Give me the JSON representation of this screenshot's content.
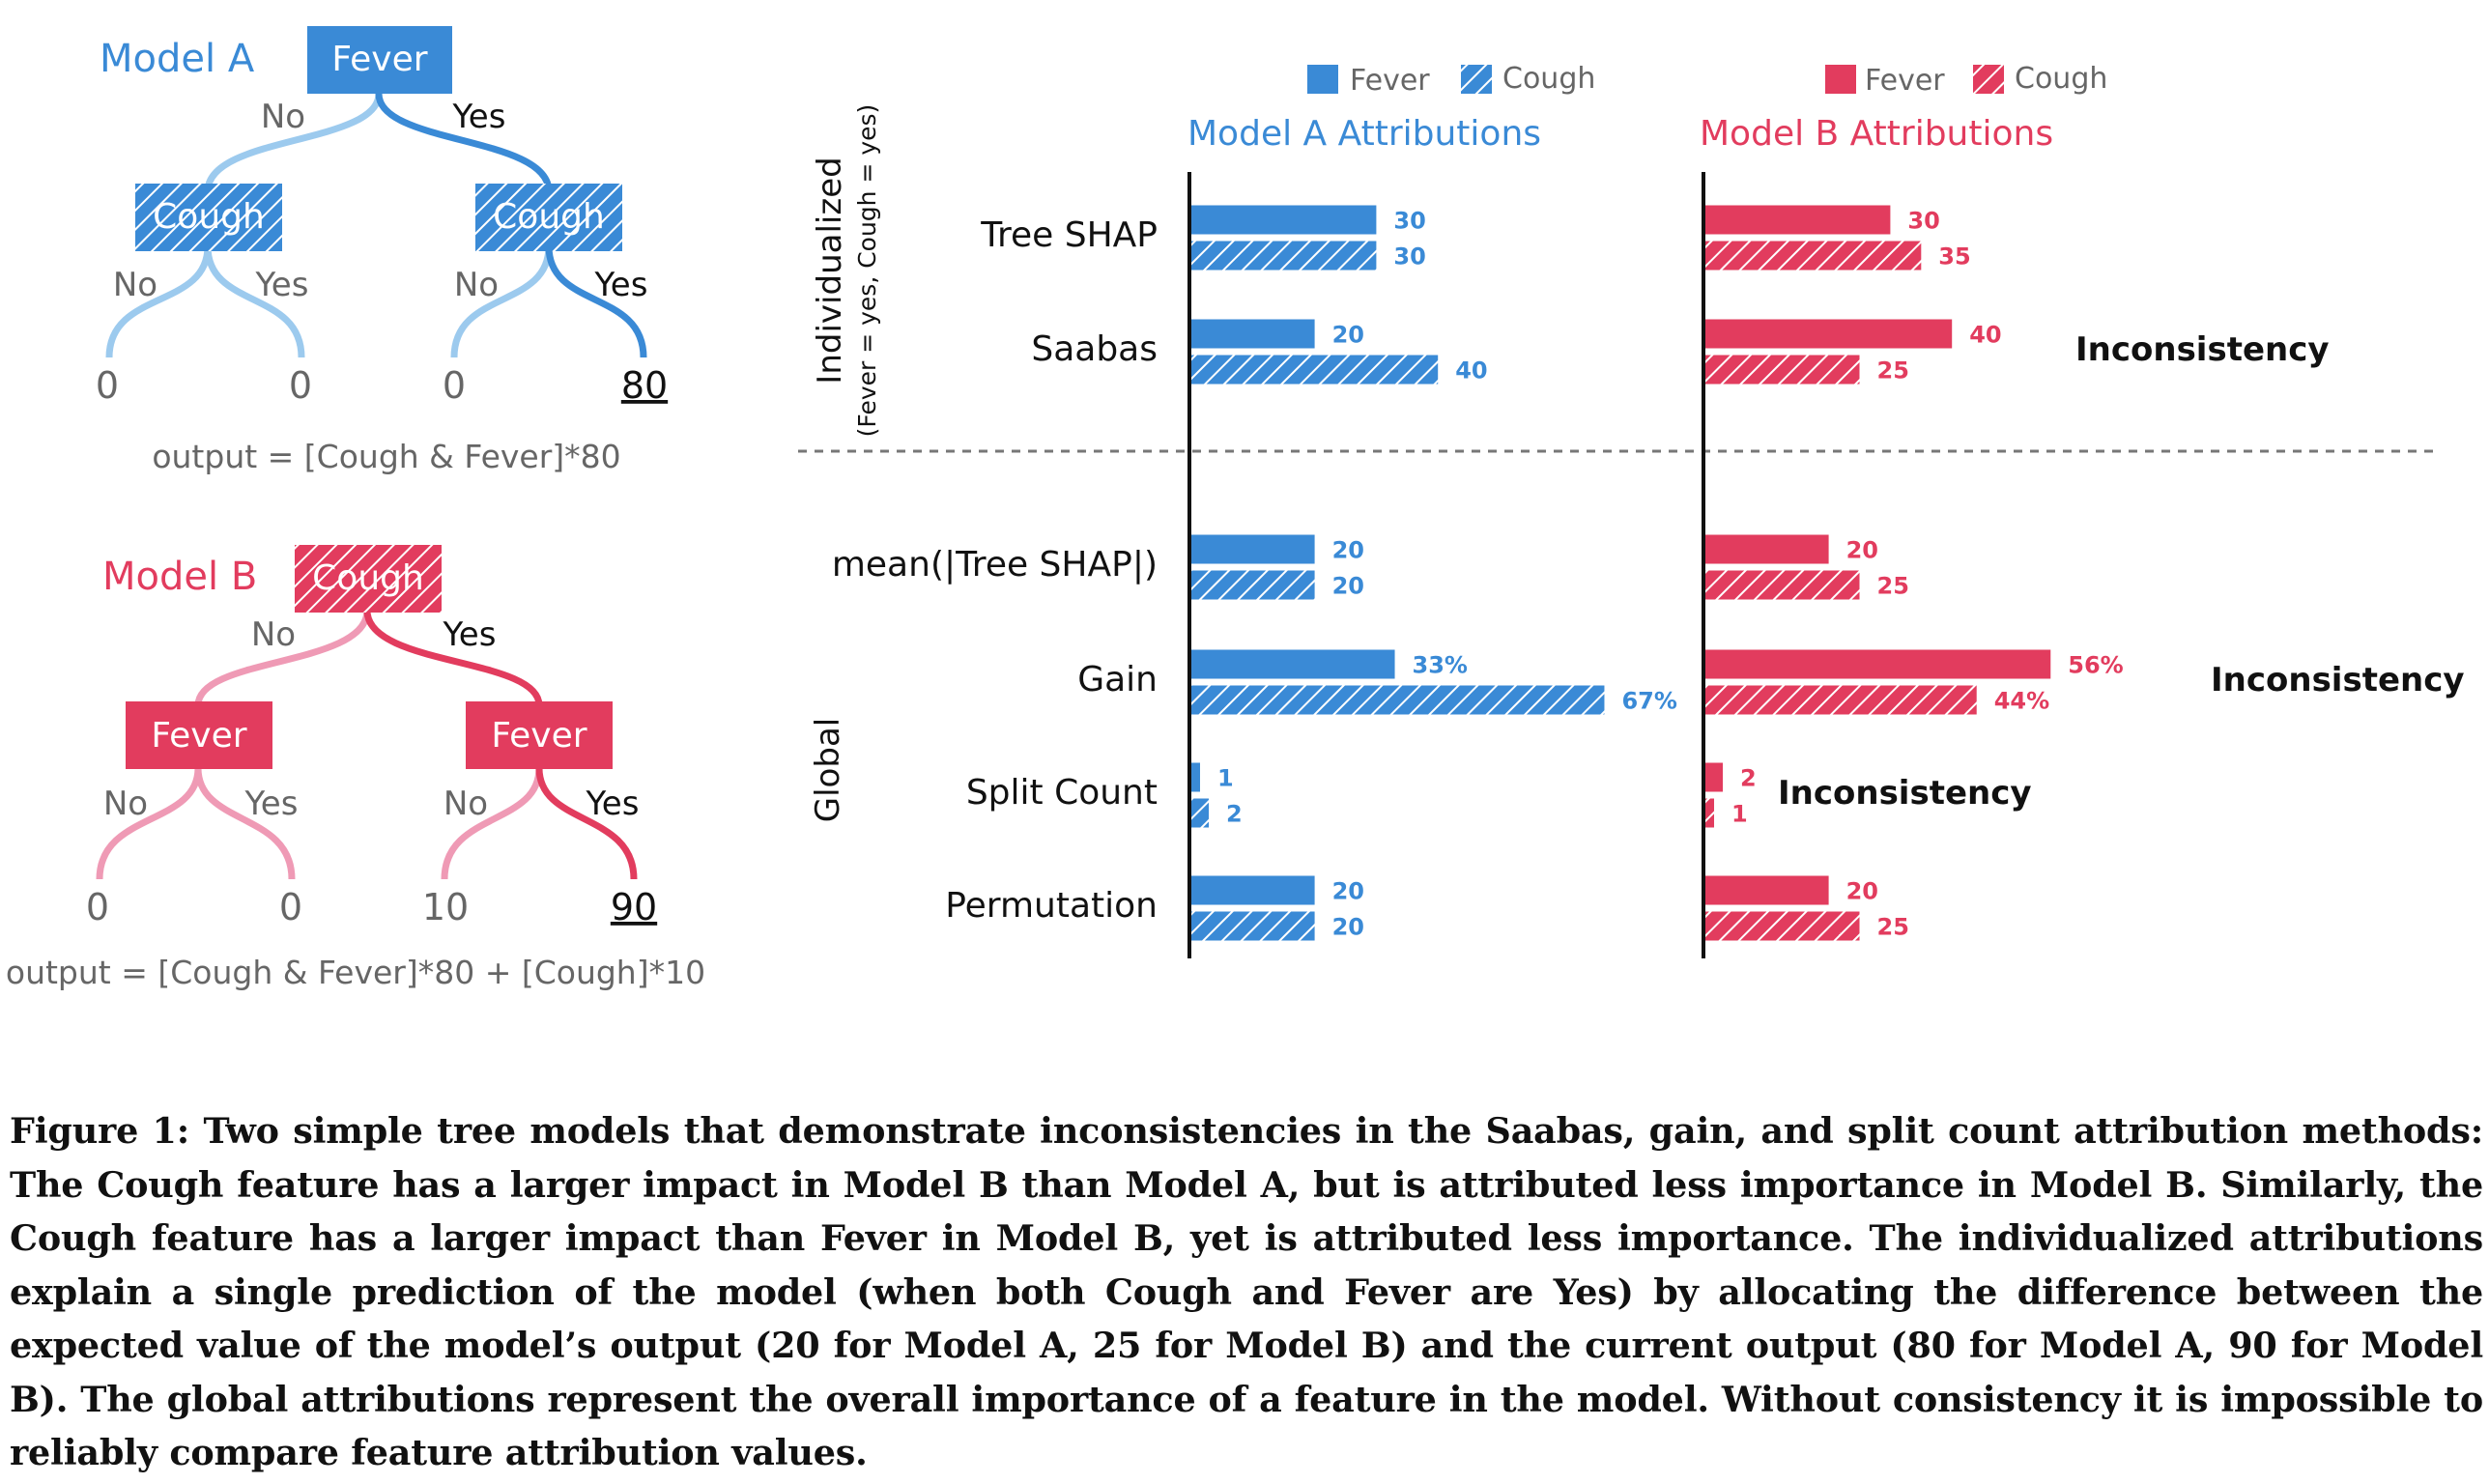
{
  "colors": {
    "blue": "#3a8ad6",
    "blue_light": "#9ccaee",
    "red": "#e23c5e",
    "red_light": "#ef9ab5",
    "gray": "#666666",
    "black": "#111111"
  },
  "model_a": {
    "title": "Model A",
    "root": "Fever",
    "branch_no": "No",
    "branch_yes": "Yes",
    "left_node": "Cough",
    "right_node": "Cough",
    "left_no": "No",
    "left_yes": "Yes",
    "right_no": "No",
    "right_yes": "Yes",
    "leaves": [
      "0",
      "0",
      "0",
      "80"
    ],
    "formula": "output = [Cough & Fever]*80"
  },
  "model_b": {
    "title": "Model B",
    "root": "Cough",
    "branch_no": "No",
    "branch_yes": "Yes",
    "left_node": "Fever",
    "right_node": "Fever",
    "left_no": "No",
    "left_yes": "Yes",
    "right_no": "No",
    "right_yes": "Yes",
    "leaves": [
      "0",
      "0",
      "10",
      "90"
    ],
    "formula": "output = [Cough & Fever]*80 + [Cough]*10"
  },
  "chart_data": {
    "type": "bar",
    "legend": {
      "a_fever": "Fever",
      "a_cough": "Cough",
      "b_fever": "Fever",
      "b_cough": "Cough"
    },
    "panel_titles": {
      "a": "Model A Attributions",
      "b": "Model B Attributions"
    },
    "group_labels": {
      "individualized": "Individualized",
      "individualized_sub": "(Fever = yes, Cough = yes)",
      "global": "Global"
    },
    "methods": [
      {
        "name": "Tree SHAP",
        "group": "individualized",
        "a": {
          "fever": 30,
          "cough": 30,
          "fever_label": "30",
          "cough_label": "30"
        },
        "b": {
          "fever": 30,
          "cough": 35,
          "fever_label": "30",
          "cough_label": "35"
        },
        "note_b": ""
      },
      {
        "name": "Saabas",
        "group": "individualized",
        "a": {
          "fever": 20,
          "cough": 40,
          "fever_label": "20",
          "cough_label": "40"
        },
        "b": {
          "fever": 40,
          "cough": 25,
          "fever_label": "40",
          "cough_label": "25"
        },
        "note_b": "Inconsistency"
      },
      {
        "name": "mean(|Tree SHAP|)",
        "group": "global",
        "a": {
          "fever": 20,
          "cough": 20,
          "fever_label": "20",
          "cough_label": "20"
        },
        "b": {
          "fever": 20,
          "cough": 25,
          "fever_label": "20",
          "cough_label": "25"
        },
        "note_b": ""
      },
      {
        "name": "Gain",
        "group": "global",
        "a": {
          "fever": 33,
          "cough": 67,
          "fever_label": "33%",
          "cough_label": "67%"
        },
        "b": {
          "fever": 56,
          "cough": 44,
          "fever_label": "56%",
          "cough_label": "44%"
        },
        "note_b": "Inconsistency"
      },
      {
        "name": "Split Count",
        "group": "global",
        "a": {
          "fever": 1,
          "cough": 2,
          "fever_label": "1",
          "cough_label": "2"
        },
        "b": {
          "fever": 2,
          "cough": 1,
          "fever_label": "2",
          "cough_label": "1"
        },
        "note_b": "Inconsistency"
      },
      {
        "name": "Permutation",
        "group": "global",
        "a": {
          "fever": 20,
          "cough": 20,
          "fever_label": "20",
          "cough_label": "20"
        },
        "b": {
          "fever": 20,
          "cough": 25,
          "fever_label": "20",
          "cough_label": "25"
        },
        "note_b": ""
      }
    ]
  },
  "caption": "Figure 1: Two simple tree models that demonstrate inconsistencies in the Saabas, gain, and split count attribution methods: The Cough feature has a larger impact in Model B than Model A, but is attributed less importance in Model B. Similarly, the Cough feature has a larger impact than Fever in Model B, yet is attributed less importance. The individualized attributions explain a single prediction of the model (when both Cough and Fever are Yes) by allocating the difference between the expected value of the model’s output (20 for Model A, 25 for Model B) and the current output (80 for Model A, 90 for Model B). The global attributions represent the overall importance of a feature in the model. Without consistency it is impossible to reliably compare feature attribution values."
}
